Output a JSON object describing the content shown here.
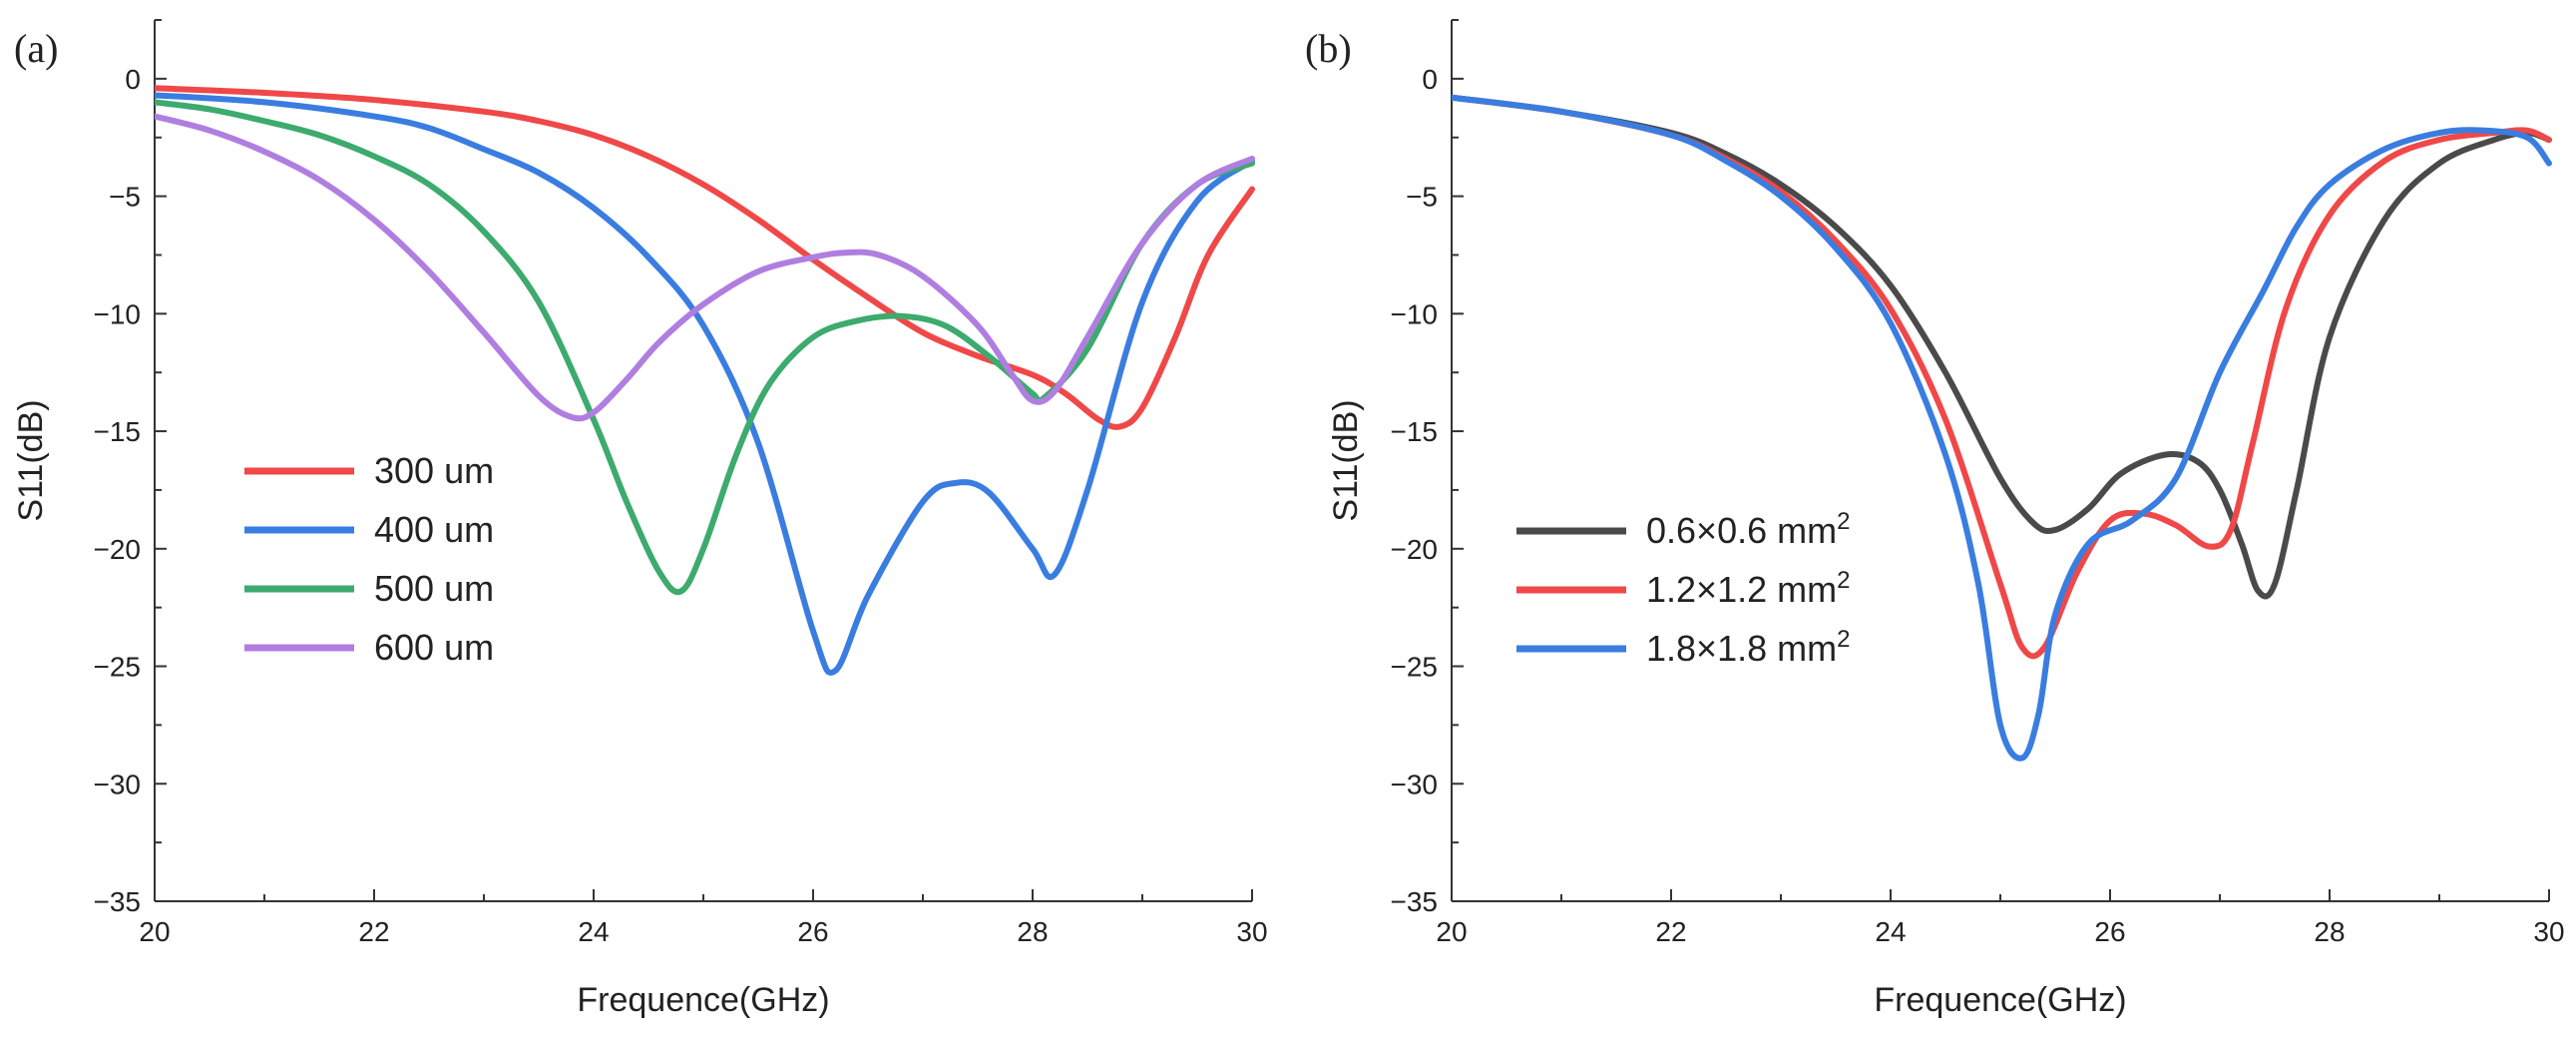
{
  "chart_data": [
    {
      "type": "line",
      "panel": "(a)",
      "xlabel": "Frequence(GHz)",
      "ylabel": "S11(dB)",
      "xlim": [
        20,
        30
      ],
      "ylim": [
        -35,
        2.5
      ],
      "xticks": [
        20,
        22,
        24,
        26,
        28,
        30
      ],
      "yticks": [
        0,
        -5,
        -10,
        -15,
        -20,
        -25,
        -30,
        -35
      ],
      "ytick_labels": [
        "0",
        "−5",
        "−10",
        "−15",
        "−20",
        "−25",
        "−30",
        "−35"
      ],
      "legend_position": "center-left",
      "series": [
        {
          "name": "300 um",
          "color": "#f04848",
          "x": [
            20,
            21,
            22,
            23,
            23.5,
            24,
            24.5,
            25,
            25.5,
            26,
            26.5,
            27,
            27.5,
            28,
            28.3,
            28.6,
            28.8,
            29,
            29.3,
            29.6,
            30
          ],
          "y": [
            -0.4,
            -0.6,
            -0.9,
            -1.4,
            -1.8,
            -2.4,
            -3.3,
            -4.5,
            -6.0,
            -7.7,
            -9.3,
            -10.8,
            -11.8,
            -12.6,
            -13.4,
            -14.5,
            -14.8,
            -14.0,
            -11.0,
            -7.5,
            -4.7
          ]
        },
        {
          "name": "400 um",
          "color": "#3a7de0",
          "x": [
            20,
            21,
            22,
            22.5,
            23,
            23.5,
            24,
            24.5,
            25,
            25.5,
            26,
            26.2,
            26.5,
            27,
            27.3,
            27.6,
            28,
            28.2,
            28.5,
            29,
            29.5,
            30
          ],
          "y": [
            -0.7,
            -1.0,
            -1.6,
            -2.1,
            -3.0,
            -4.0,
            -5.5,
            -7.6,
            -10.5,
            -15.5,
            -23.5,
            -25.2,
            -22.0,
            -18.0,
            -17.2,
            -17.6,
            -20.0,
            -21.1,
            -17.5,
            -9.5,
            -5.2,
            -3.5
          ]
        },
        {
          "name": "500 um",
          "color": "#3daa6e",
          "x": [
            20,
            20.5,
            21,
            21.5,
            22,
            22.5,
            23,
            23.5,
            24,
            24.3,
            24.6,
            24.8,
            25,
            25.3,
            25.6,
            26,
            26.4,
            26.8,
            27.2,
            27.6,
            28,
            28.1,
            28.5,
            29,
            29.5,
            30
          ],
          "y": [
            -1.0,
            -1.3,
            -1.8,
            -2.4,
            -3.3,
            -4.5,
            -6.5,
            -9.5,
            -14.5,
            -18.0,
            -21.0,
            -21.8,
            -20.0,
            -16.0,
            -13.0,
            -11.0,
            -10.3,
            -10.1,
            -10.5,
            -11.8,
            -13.4,
            -13.6,
            -11.5,
            -7.0,
            -4.5,
            -3.6
          ]
        },
        {
          "name": "600 um",
          "color": "#b07ee0",
          "x": [
            20,
            20.5,
            21,
            21.5,
            22,
            22.5,
            23,
            23.5,
            23.8,
            24,
            24.3,
            24.6,
            25,
            25.5,
            26,
            26.3,
            26.6,
            27,
            27.5,
            27.8,
            28,
            28.2,
            28.5,
            29,
            29.5,
            30
          ],
          "y": [
            -1.6,
            -2.2,
            -3.1,
            -4.3,
            -6.0,
            -8.2,
            -10.8,
            -13.5,
            -14.4,
            -14.2,
            -12.8,
            -11.2,
            -9.6,
            -8.2,
            -7.6,
            -7.4,
            -7.5,
            -8.4,
            -10.5,
            -12.5,
            -13.7,
            -13.3,
            -11.0,
            -7.0,
            -4.5,
            -3.4
          ]
        }
      ]
    },
    {
      "type": "line",
      "panel": "(b)",
      "xlabel": "Frequence(GHz)",
      "ylabel": "S11(dB)",
      "xlim": [
        20,
        30
      ],
      "ylim": [
        -35,
        2.5
      ],
      "xticks": [
        20,
        22,
        24,
        26,
        28,
        30
      ],
      "yticks": [
        0,
        -5,
        -10,
        -15,
        -20,
        -25,
        -30,
        -35
      ],
      "ytick_labels": [
        "0",
        "−5",
        "−10",
        "−15",
        "−20",
        "−25",
        "−30",
        "−35"
      ],
      "legend_position": "center-left",
      "series": [
        {
          "name": "0.6×0.6 mm",
          "superscript": "2",
          "color": "#4a4a4a",
          "x": [
            20,
            21,
            22,
            22.5,
            23,
            23.5,
            24,
            24.5,
            25,
            25.3,
            25.5,
            25.8,
            26.1,
            26.5,
            26.8,
            27,
            27.2,
            27.35,
            27.5,
            27.7,
            28,
            28.5,
            29,
            29.5,
            29.8,
            30
          ],
          "y": [
            -0.8,
            -1.4,
            -2.3,
            -3.2,
            -4.5,
            -6.3,
            -8.8,
            -12.5,
            -17.0,
            -18.9,
            -19.2,
            -18.3,
            -16.8,
            -16.0,
            -16.3,
            -17.5,
            -19.8,
            -21.8,
            -21.5,
            -17.5,
            -11.0,
            -6.0,
            -3.6,
            -2.6,
            -2.3,
            -2.6
          ]
        },
        {
          "name": "1.2×1.2 mm",
          "superscript": "2",
          "color": "#f04848",
          "x": [
            20,
            21,
            22,
            22.5,
            23,
            23.5,
            24,
            24.5,
            25,
            25.2,
            25.4,
            25.7,
            26,
            26.3,
            26.6,
            26.9,
            27.1,
            27.3,
            27.6,
            28,
            28.5,
            29,
            29.5,
            29.8,
            30
          ],
          "y": [
            -0.8,
            -1.4,
            -2.4,
            -3.4,
            -4.8,
            -6.9,
            -9.8,
            -14.5,
            -21.5,
            -24.2,
            -24.2,
            -21.0,
            -18.8,
            -18.5,
            -19.0,
            -19.9,
            -19.2,
            -15.5,
            -9.8,
            -5.8,
            -3.5,
            -2.6,
            -2.3,
            -2.2,
            -2.6
          ]
        },
        {
          "name": "1.8×1.8 mm",
          "superscript": "2",
          "color": "#3a7de0",
          "x": [
            20,
            21,
            22,
            22.5,
            23,
            23.5,
            24,
            24.5,
            24.8,
            25,
            25.2,
            25.35,
            25.5,
            25.8,
            26.2,
            26.6,
            27,
            27.4,
            27.7,
            28,
            28.5,
            29,
            29.4,
            29.8,
            30
          ],
          "y": [
            -0.8,
            -1.4,
            -2.4,
            -3.5,
            -5.0,
            -7.2,
            -10.4,
            -16.0,
            -21.5,
            -27.5,
            -28.9,
            -27.0,
            -22.8,
            -19.8,
            -18.8,
            -17.0,
            -12.5,
            -9.0,
            -6.3,
            -4.5,
            -3.0,
            -2.3,
            -2.2,
            -2.5,
            -3.6
          ]
        }
      ]
    }
  ]
}
